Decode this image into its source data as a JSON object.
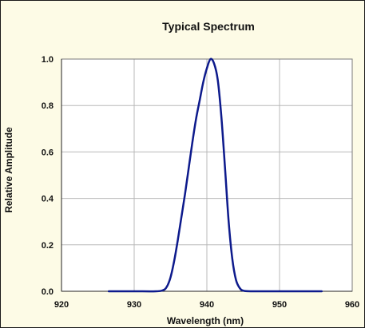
{
  "chart_data": {
    "type": "line",
    "title": "Typical Spectrum",
    "xlabel": "Wavelength (nm)",
    "ylabel": "Relative Amplitude",
    "xlim": [
      920,
      960
    ],
    "ylim": [
      0.0,
      1.0
    ],
    "xticks": [
      "920",
      "930",
      "940",
      "950",
      "960"
    ],
    "yticks": [
      "0.0",
      "0.2",
      "0.4",
      "0.6",
      "0.8",
      "1.0"
    ],
    "grid": true,
    "legend": "none",
    "colors": {
      "background": "#fdfbe6",
      "plot_area": "#ffffff",
      "line": "#0d1a8c",
      "grid": "#b8b8b8"
    },
    "series": [
      {
        "values": [
          [
            926.5,
            0.0
          ],
          [
            930.0,
            0.0
          ],
          [
            933.0,
            0.0
          ],
          [
            934.0,
            0.005
          ],
          [
            934.5,
            0.02
          ],
          [
            935.0,
            0.06
          ],
          [
            935.5,
            0.13
          ],
          [
            936.0,
            0.22
          ],
          [
            936.5,
            0.32
          ],
          [
            937.0,
            0.42
          ],
          [
            937.5,
            0.53
          ],
          [
            938.0,
            0.64
          ],
          [
            938.5,
            0.74
          ],
          [
            939.0,
            0.82
          ],
          [
            939.5,
            0.9
          ],
          [
            940.0,
            0.96
          ],
          [
            940.5,
            1.0
          ],
          [
            941.0,
            0.98
          ],
          [
            941.5,
            0.91
          ],
          [
            942.0,
            0.75
          ],
          [
            942.5,
            0.53
          ],
          [
            943.0,
            0.3
          ],
          [
            943.5,
            0.14
          ],
          [
            944.0,
            0.05
          ],
          [
            944.5,
            0.015
          ],
          [
            945.0,
            0.003
          ],
          [
            946.0,
            0.0
          ],
          [
            950.0,
            0.0
          ],
          [
            955.8,
            0.0
          ]
        ]
      }
    ]
  }
}
